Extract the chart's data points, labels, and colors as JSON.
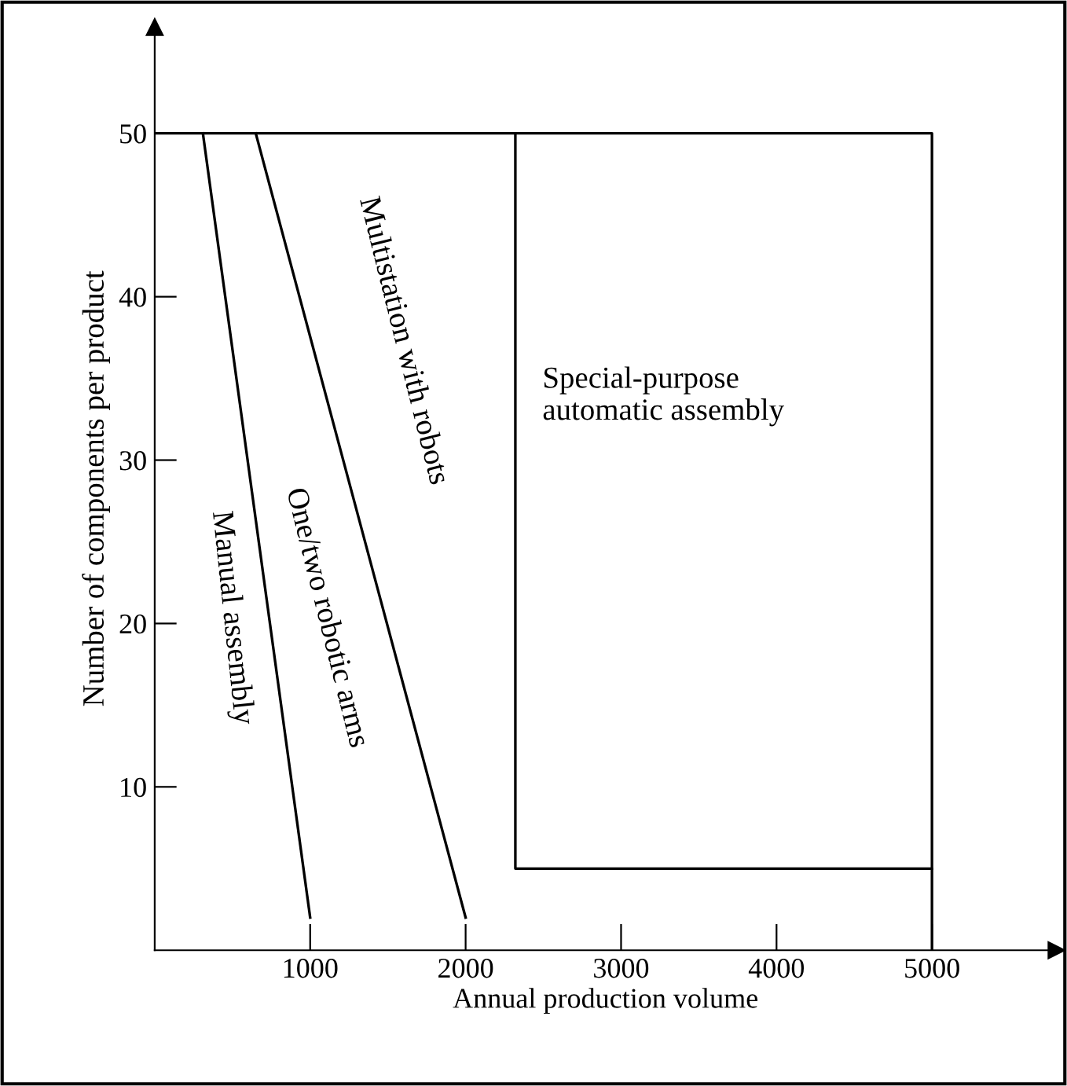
{
  "chart_data": {
    "type": "line",
    "xlabel": "Annual production volume",
    "ylabel": "Number of components per product",
    "xlim": [
      0,
      5800
    ],
    "ylim": [
      0,
      56.5
    ],
    "xticks": [
      1000,
      2000,
      3000,
      4000,
      5000
    ],
    "yticks": [
      10,
      20,
      30,
      40,
      50
    ],
    "grid": false,
    "legend": false,
    "marker": "none",
    "line_style": "solid",
    "series": [
      {
        "color": "#000000",
        "x": [
          310,
          1000
        ],
        "values": [
          50,
          2
        ]
      },
      {
        "color": "#000000",
        "x": [
          650,
          2000
        ],
        "values": [
          50,
          2
        ]
      },
      {
        "color": "#000000",
        "x": [
          0,
          5000,
          5000
        ],
        "values": [
          50,
          50,
          5
        ]
      },
      {
        "color": "#000000",
        "x": [
          2320,
          2320,
          5000,
          5000
        ],
        "values": [
          50,
          5,
          5,
          0
        ]
      }
    ],
    "annotations": [
      "Manual assembly",
      "One/two robotic arms",
      "Multistation with robots",
      "Special-purpose\nautomatic assembly"
    ]
  }
}
